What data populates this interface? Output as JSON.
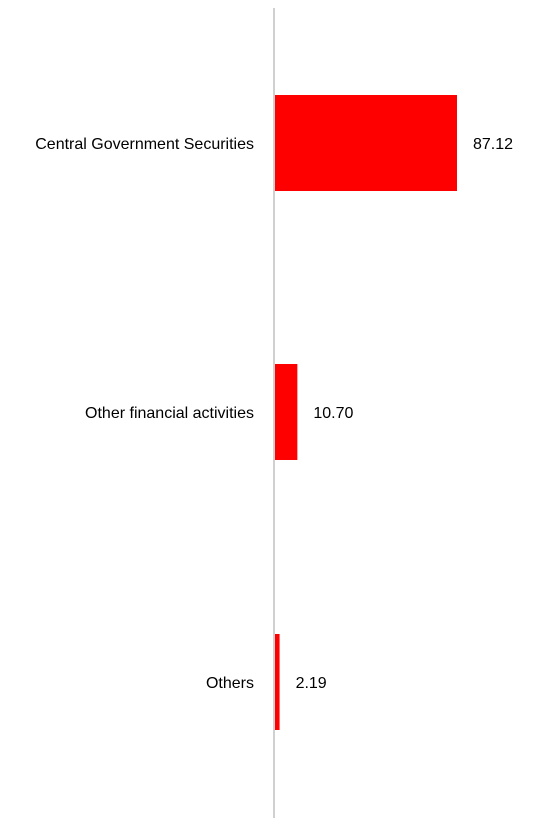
{
  "chart_data": {
    "type": "bar",
    "orientation": "horizontal",
    "categories": [
      "Central Government Securities",
      "Other financial activities",
      "Others"
    ],
    "values": [
      87.12,
      10.7,
      2.19
    ],
    "value_labels": [
      "87.12",
      "10.70",
      "2.19"
    ],
    "bar_color": "#ff0000",
    "axis_color": "#d0d0d0",
    "xlim": [
      0,
      100
    ],
    "grid": false,
    "legend": "none"
  }
}
